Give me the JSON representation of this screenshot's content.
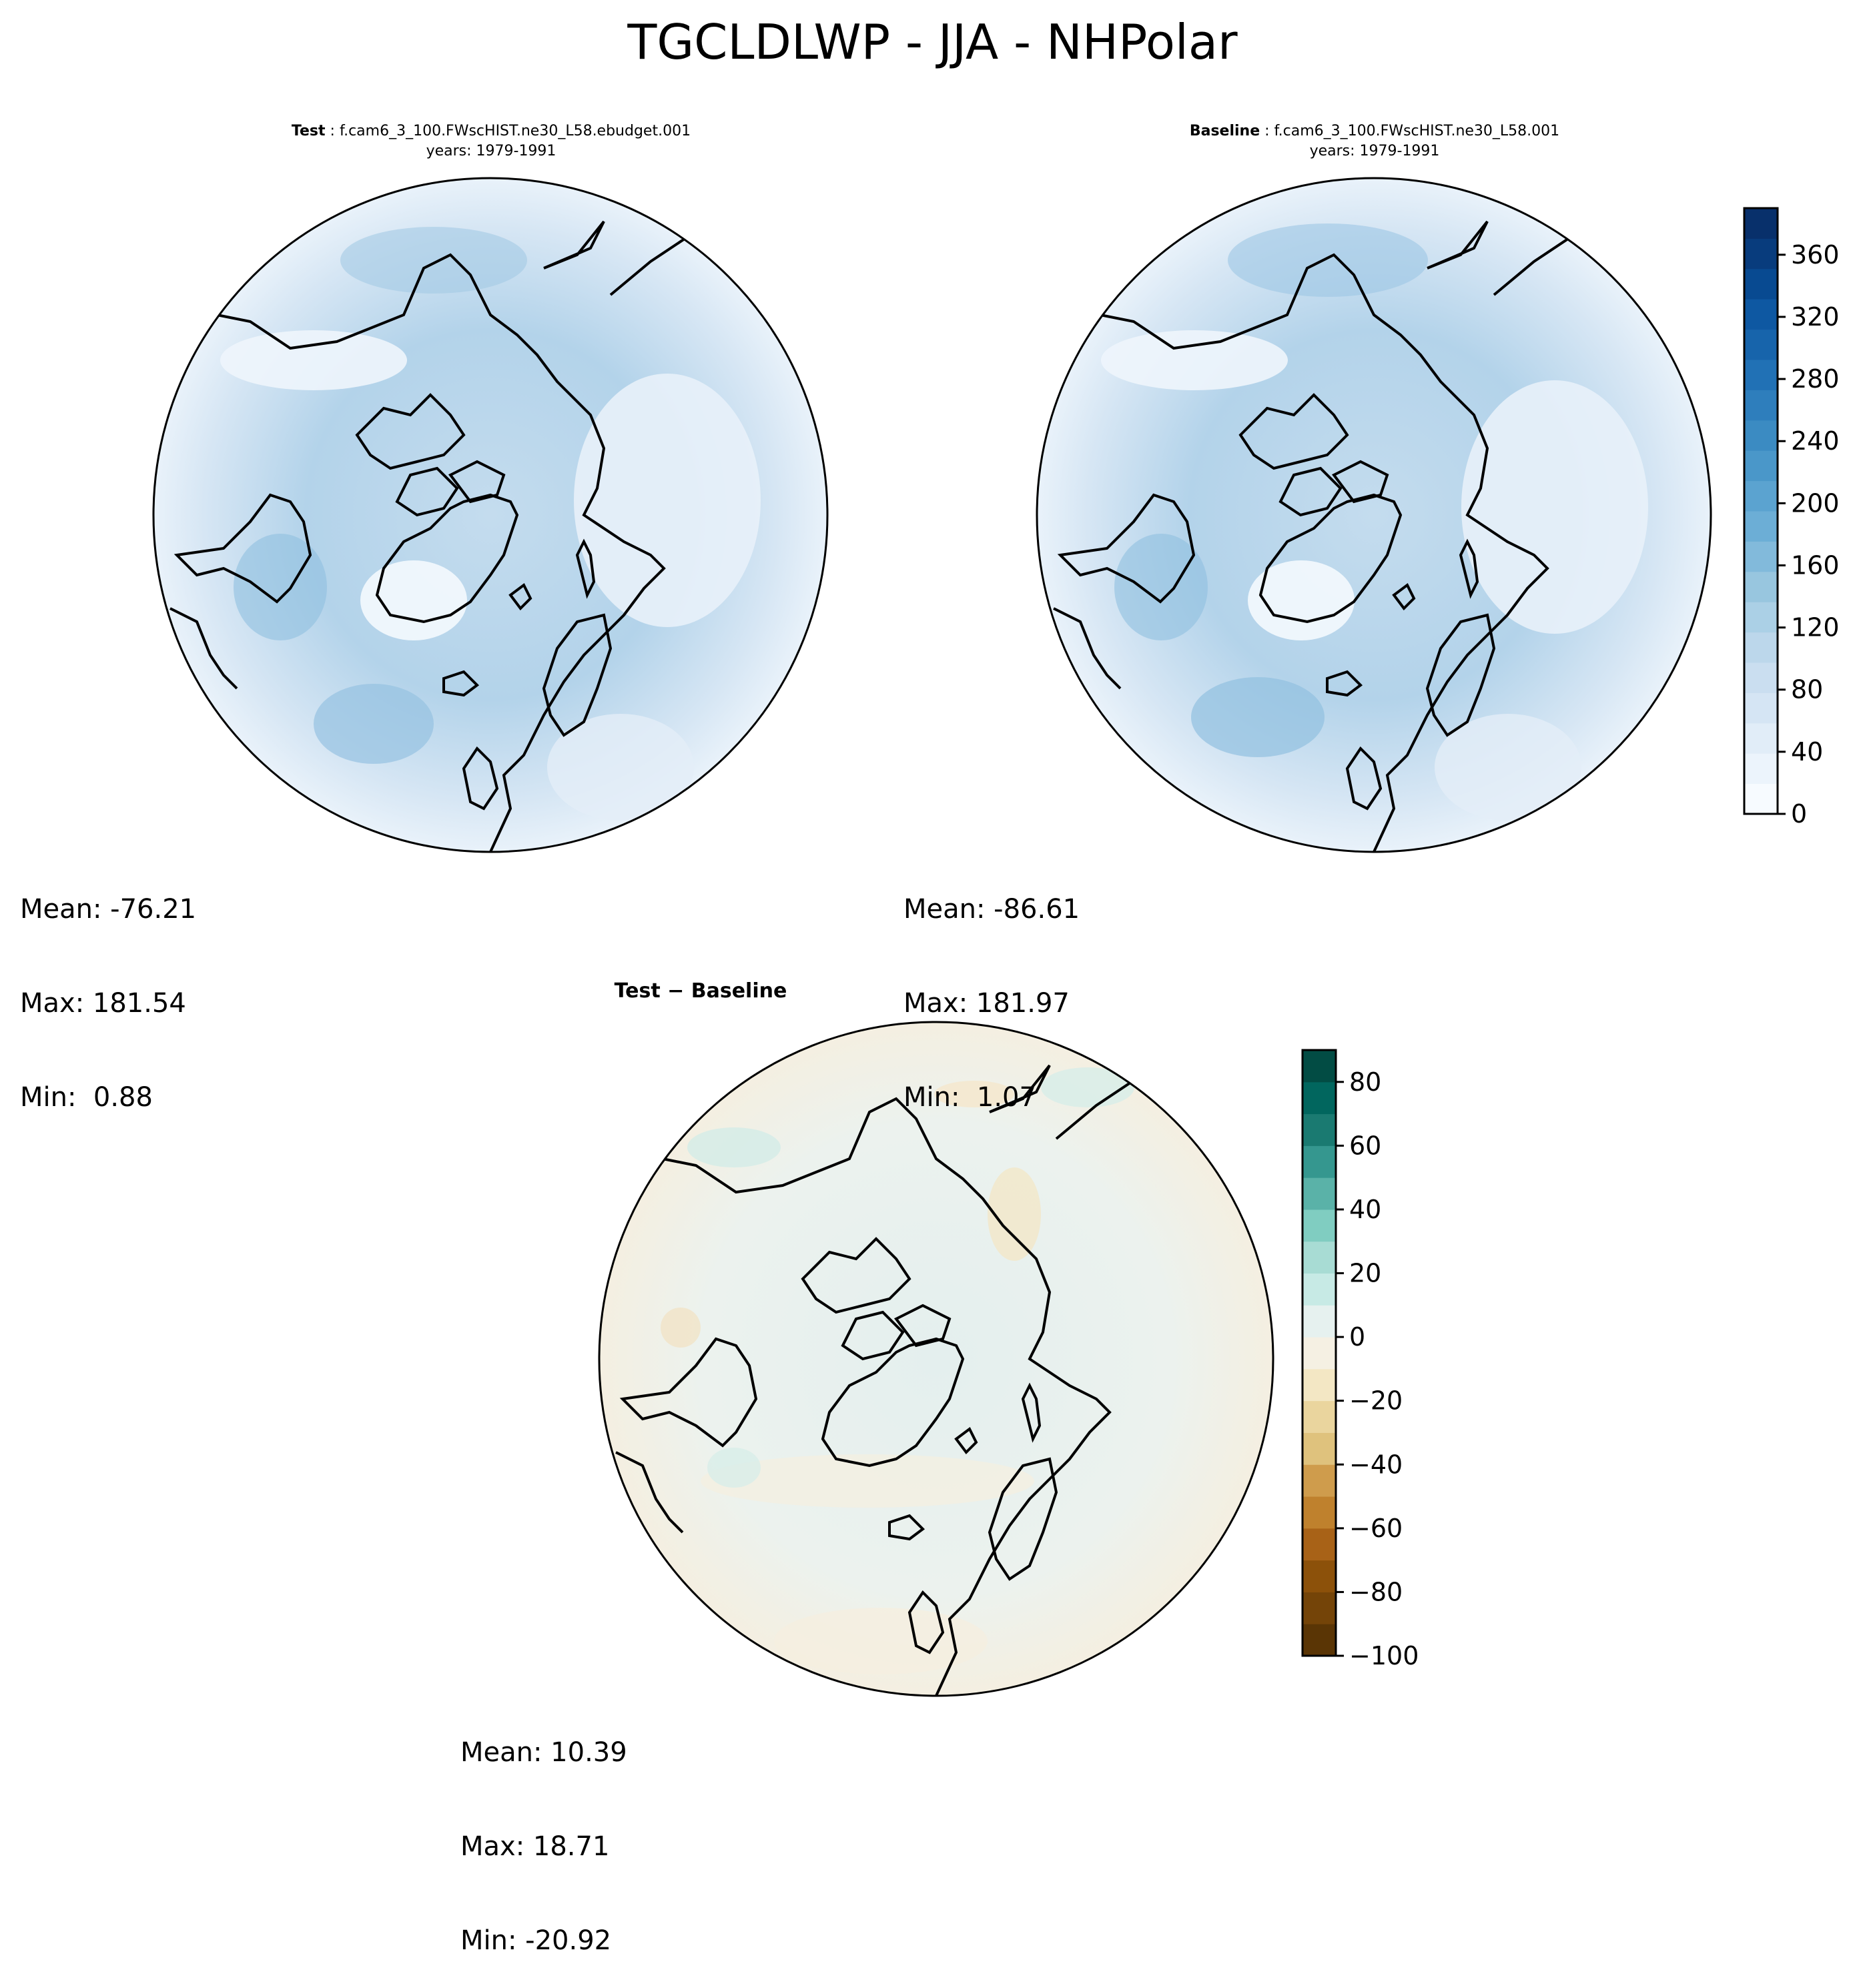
{
  "figure": {
    "suptitle": "TGCLDLWP - JJA - NHPolar"
  },
  "panels": [
    {
      "id": "test",
      "label": "Test",
      "case": "f.cam6_3_100.FWscHIST.ne30_L58.ebudget.001",
      "years": "years: 1979-1991",
      "stats": {
        "mean": "Mean: -76.21",
        "max": "Max: 181.54",
        "min": "Min:  0.88"
      }
    },
    {
      "id": "baseline",
      "label": "Baseline",
      "case": "f.cam6_3_100.FWscHIST.ne30_L58.001",
      "years": "years: 1979-1991",
      "stats": {
        "mean": "Mean: -86.61",
        "max": "Max: 181.97",
        "min": "Min:  1.07"
      }
    },
    {
      "id": "diff",
      "label": "Test − Baseline",
      "stats": {
        "mean": "Mean: 10.39",
        "max": "Max: 18.71",
        "min": "Min: -20.92"
      }
    }
  ],
  "chart_data": [
    {
      "type": "heatmap",
      "projection": "north-polar stereographic",
      "panel": "Test",
      "summary": {
        "mean": -76.21,
        "max": 181.54,
        "min": 0.88
      },
      "colormap": "Blues",
      "colorbar": {
        "range": [
          0,
          390
        ],
        "ticks": [
          0,
          40,
          80,
          120,
          160,
          200,
          240,
          280,
          320,
          360
        ],
        "shared_with": "Baseline"
      }
    },
    {
      "type": "heatmap",
      "projection": "north-polar stereographic",
      "panel": "Baseline",
      "summary": {
        "mean": -86.61,
        "max": 181.97,
        "min": 1.07
      },
      "colormap": "Blues",
      "colorbar": {
        "range": [
          0,
          390
        ],
        "ticks": [
          0,
          40,
          80,
          120,
          160,
          200,
          240,
          280,
          320,
          360
        ],
        "tick_labels": [
          "0",
          "40",
          "80",
          "120",
          "160",
          "200",
          "240",
          "280",
          "320",
          "360"
        ],
        "levels": 20,
        "colors": [
          "#f7fbff",
          "#ecf4fc",
          "#e1edf8",
          "#d5e5f4",
          "#cadef0",
          "#bcd7eb",
          "#abd0e6",
          "#98c6df",
          "#82badb",
          "#6caed6",
          "#5ba3d0",
          "#4a97c9",
          "#3b8bc2",
          "#2e7ebc",
          "#2171b5",
          "#1764ab",
          "#0e58a2",
          "#084a91",
          "#083c7d",
          "#08306b"
        ]
      }
    },
    {
      "type": "heatmap",
      "projection": "north-polar stereographic",
      "panel": "Test − Baseline",
      "summary": {
        "mean": 10.39,
        "max": 18.71,
        "min": -20.92
      },
      "colormap": "BrBG",
      "colorbar": {
        "range": [
          -100,
          90
        ],
        "ticks": [
          -100,
          -80,
          -60,
          -40,
          -20,
          0,
          20,
          40,
          60,
          80
        ],
        "tick_labels": [
          "−100",
          "−80",
          "−60",
          "−40",
          "−20",
          "0",
          "20",
          "40",
          "60",
          "80"
        ],
        "levels": 19,
        "colors": [
          "#5a3505",
          "#744408",
          "#8c510a",
          "#a86217",
          "#bf812d",
          "#cf9c4c",
          "#dfc27d",
          "#ead59e",
          "#f3e7c4",
          "#f5f0e3",
          "#e6f1ef",
          "#c7eae5",
          "#a8dcd4",
          "#80cdc1",
          "#5ab2a8",
          "#35978f",
          "#1a7a71",
          "#01665e",
          "#024c44"
        ]
      }
    }
  ]
}
